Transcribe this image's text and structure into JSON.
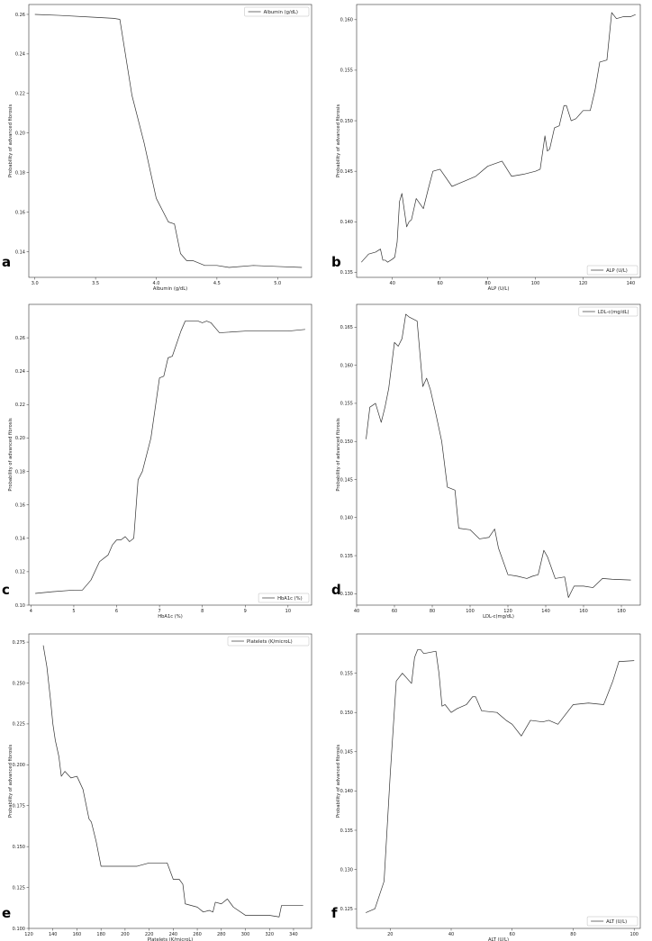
{
  "chart_data": [
    {
      "type": "line",
      "panel": "a",
      "xlabel": "Albumin (g/dL)",
      "ylabel": "Probability of advanced fibrosis",
      "legend": "Albumin (g/dL)",
      "legend_loc": "top-right",
      "xlim": [
        2.95,
        5.28
      ],
      "ylim": [
        0.127,
        0.265
      ],
      "xticks": [
        3.0,
        3.5,
        4.0,
        4.5,
        5.0
      ],
      "yticks": [
        0.14,
        0.16,
        0.18,
        0.2,
        0.22,
        0.24,
        0.26
      ],
      "x": [
        3.0,
        3.2,
        3.5,
        3.65,
        3.7,
        3.8,
        3.9,
        4.0,
        4.1,
        4.15,
        4.2,
        4.25,
        4.3,
        4.4,
        4.5,
        4.6,
        4.8,
        5.0,
        5.2
      ],
      "y": [
        0.26,
        0.2595,
        0.2585,
        0.258,
        0.2575,
        0.219,
        0.195,
        0.167,
        0.155,
        0.154,
        0.139,
        0.1355,
        0.1355,
        0.133,
        0.133,
        0.132,
        0.133,
        0.1325,
        0.132
      ]
    },
    {
      "type": "line",
      "panel": "b",
      "xlabel": "ALP (U/L)",
      "ylabel": "Probability of advanced fibrosis",
      "legend": "ALP (U/L)",
      "legend_loc": "bottom-right",
      "xlim": [
        25,
        144
      ],
      "ylim": [
        0.1345,
        0.1615
      ],
      "xticks": [
        40,
        60,
        80,
        100,
        120,
        140
      ],
      "yticks": [
        0.135,
        0.14,
        0.145,
        0.15,
        0.155,
        0.16
      ],
      "x": [
        27,
        30,
        33,
        35,
        36,
        37,
        38,
        40,
        41,
        42,
        43,
        44,
        46,
        47,
        48,
        50,
        53,
        55,
        57,
        60,
        65,
        70,
        75,
        80,
        86,
        90,
        95,
        100,
        102,
        104,
        105,
        106,
        108,
        110,
        112,
        113,
        115,
        117,
        120,
        123,
        125,
        127,
        130,
        132,
        134,
        137,
        140,
        142
      ],
      "y": [
        0.136,
        0.1368,
        0.137,
        0.1373,
        0.1362,
        0.1362,
        0.136,
        0.1363,
        0.1365,
        0.138,
        0.142,
        0.1428,
        0.1395,
        0.14,
        0.1402,
        0.1423,
        0.1413,
        0.1432,
        0.145,
        0.1452,
        0.1435,
        0.144,
        0.1445,
        0.1455,
        0.146,
        0.1445,
        0.1447,
        0.145,
        0.1452,
        0.1485,
        0.147,
        0.1472,
        0.1493,
        0.1495,
        0.1515,
        0.1515,
        0.15,
        0.1502,
        0.151,
        0.151,
        0.153,
        0.1558,
        0.156,
        0.1607,
        0.1601,
        0.1603,
        0.1603,
        0.1605
      ]
    },
    {
      "type": "line",
      "panel": "c",
      "xlabel": "HbA1c (%)",
      "ylabel": "Probability of advanced fibrosis",
      "legend": "HbA1c (%)",
      "legend_loc": "bottom-right",
      "xlim": [
        3.95,
        10.55
      ],
      "ylim": [
        0.1,
        0.28
      ],
      "xticks": [
        4,
        5,
        6,
        7,
        8,
        9,
        10
      ],
      "yticks": [
        0.1,
        0.12,
        0.14,
        0.16,
        0.18,
        0.2,
        0.22,
        0.24,
        0.26
      ],
      "x": [
        4.1,
        4.5,
        5.0,
        5.2,
        5.4,
        5.6,
        5.8,
        5.9,
        6.0,
        6.1,
        6.2,
        6.3,
        6.4,
        6.5,
        6.6,
        6.8,
        7.0,
        7.1,
        7.2,
        7.3,
        7.5,
        7.6,
        7.9,
        8.0,
        8.1,
        8.2,
        8.4,
        9.0,
        10.0,
        10.4
      ],
      "y": [
        0.107,
        0.108,
        0.109,
        0.109,
        0.115,
        0.126,
        0.13,
        0.136,
        0.139,
        0.139,
        0.141,
        0.138,
        0.14,
        0.175,
        0.18,
        0.2,
        0.236,
        0.237,
        0.248,
        0.249,
        0.264,
        0.27,
        0.27,
        0.269,
        0.27,
        0.269,
        0.263,
        0.264,
        0.264,
        0.265
      ]
    },
    {
      "type": "line",
      "panel": "d",
      "xlabel": "LDL-c(mg/dL)",
      "ylabel": "Probability of advanced fibrosis",
      "legend": "LDL-c(mg/dL)",
      "legend_loc": "top-right",
      "xlim": [
        40,
        190
      ],
      "ylim": [
        0.1285,
        0.168
      ],
      "xticks": [
        40,
        60,
        80,
        100,
        120,
        140,
        160,
        180
      ],
      "yticks": [
        0.13,
        0.135,
        0.14,
        0.145,
        0.15,
        0.155,
        0.16,
        0.165
      ],
      "x": [
        45,
        47,
        50,
        53,
        55,
        57,
        60,
        62,
        64,
        66,
        68,
        72,
        75,
        77,
        79,
        82,
        85,
        88,
        92,
        94,
        100,
        105,
        110,
        113,
        115,
        120,
        125,
        130,
        133,
        136,
        139,
        141,
        145,
        150,
        152,
        155,
        160,
        165,
        170,
        175,
        185
      ],
      "y": [
        0.1503,
        0.1545,
        0.155,
        0.1525,
        0.1545,
        0.157,
        0.163,
        0.1625,
        0.1635,
        0.1667,
        0.1663,
        0.1658,
        0.1572,
        0.1583,
        0.1568,
        0.1535,
        0.15,
        0.144,
        0.1436,
        0.1386,
        0.1384,
        0.1372,
        0.1374,
        0.1385,
        0.136,
        0.1325,
        0.1323,
        0.132,
        0.1323,
        0.1325,
        0.1357,
        0.1348,
        0.132,
        0.1322,
        0.1295,
        0.131,
        0.131,
        0.1308,
        0.132,
        0.1319,
        0.1318
      ]
    },
    {
      "type": "line",
      "panel": "e",
      "xlabel": "Platelets (K/microL)",
      "ylabel": "Probability of advanced fibrosis",
      "legend": "Platelets (K/microL)",
      "legend_loc": "top-right",
      "xlim": [
        120,
        355
      ],
      "ylim": [
        0.1,
        0.28
      ],
      "xticks": [
        120,
        140,
        160,
        180,
        200,
        220,
        240,
        260,
        280,
        300,
        320,
        340
      ],
      "yticks": [
        0.1,
        0.125,
        0.15,
        0.175,
        0.2,
        0.225,
        0.25,
        0.275
      ],
      "x": [
        132,
        135,
        138,
        140,
        142,
        145,
        147,
        150,
        155,
        160,
        165,
        170,
        172,
        176,
        180,
        185,
        195,
        205,
        210,
        220,
        230,
        235,
        240,
        245,
        248,
        250,
        260,
        265,
        270,
        273,
        275,
        280,
        285,
        290,
        300,
        310,
        320,
        328,
        330,
        340,
        348
      ],
      "y": [
        0.273,
        0.26,
        0.24,
        0.225,
        0.215,
        0.205,
        0.193,
        0.196,
        0.192,
        0.193,
        0.185,
        0.167,
        0.165,
        0.153,
        0.138,
        0.138,
        0.138,
        0.138,
        0.138,
        0.14,
        0.14,
        0.14,
        0.13,
        0.13,
        0.127,
        0.115,
        0.113,
        0.11,
        0.111,
        0.11,
        0.116,
        0.115,
        0.118,
        0.113,
        0.108,
        0.108,
        0.108,
        0.107,
        0.114,
        0.114,
        0.114
      ]
    },
    {
      "type": "line",
      "panel": "f",
      "xlabel": "ALT (U/L)",
      "ylabel": "Probability of advanced fibrosis",
      "legend": "ALT (U/L)",
      "legend_loc": "bottom-right",
      "xlim": [
        9,
        102
      ],
      "ylim": [
        0.1225,
        0.16
      ],
      "xticks": [
        20,
        40,
        60,
        80,
        100
      ],
      "yticks": [
        0.125,
        0.13,
        0.135,
        0.14,
        0.145,
        0.15,
        0.155
      ],
      "x": [
        12,
        15,
        18,
        20,
        22,
        24,
        27,
        28,
        29,
        30,
        31,
        35,
        36,
        37,
        38,
        40,
        42,
        45,
        47,
        48,
        50,
        55,
        58,
        60,
        63,
        66,
        70,
        72,
        75,
        80,
        85,
        90,
        93,
        95,
        96,
        100
      ],
      "y": [
        0.1245,
        0.125,
        0.1285,
        0.142,
        0.154,
        0.155,
        0.1537,
        0.157,
        0.158,
        0.158,
        0.1575,
        0.1578,
        0.155,
        0.1508,
        0.151,
        0.15,
        0.1505,
        0.151,
        0.152,
        0.152,
        0.1502,
        0.15,
        0.149,
        0.1485,
        0.147,
        0.149,
        0.1488,
        0.149,
        0.1485,
        0.151,
        0.1512,
        0.151,
        0.154,
        0.1565,
        0.1565,
        0.1566
      ]
    }
  ],
  "panel_labels": [
    "a",
    "b",
    "c",
    "d",
    "e",
    "f"
  ]
}
